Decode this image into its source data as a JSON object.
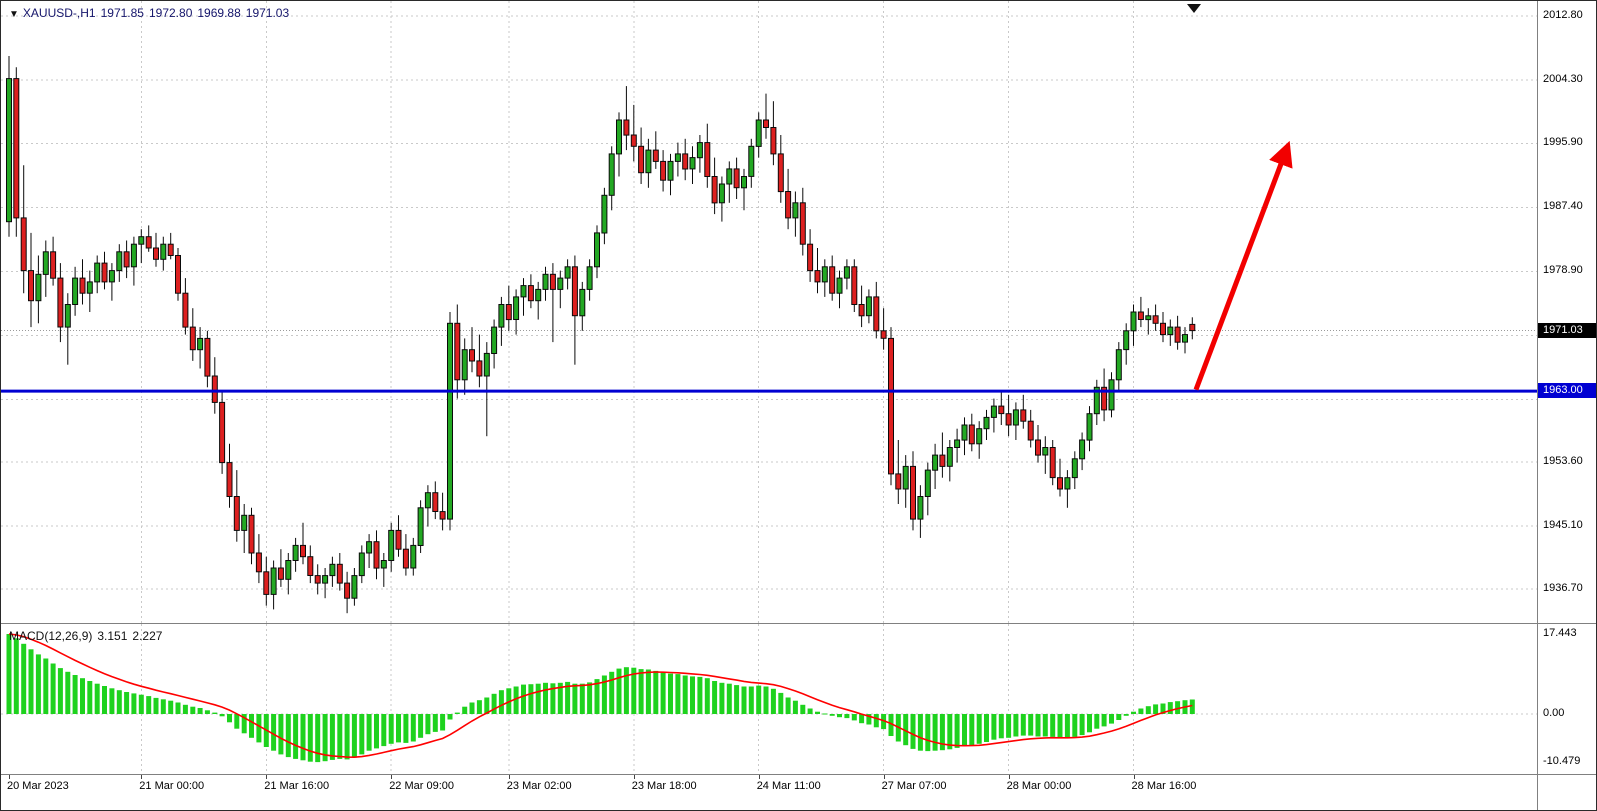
{
  "colors": {
    "bull": "#23a823",
    "bear": "#dd2020",
    "wick": "#0a0a0a",
    "histogram": "#1ed21e",
    "signal": "#ff0000",
    "hline": "#0000d2",
    "arrow": "#f20000",
    "badge_current_bg": "#000000",
    "badge_hline_bg": "#0000d2",
    "grid": "#c9c9c9",
    "header_text": "#15156b"
  },
  "header": {
    "marker": "▼",
    "symbol_timeframe": "XAUUSD-,H1",
    "open": "1971.85",
    "high": "1972.80",
    "low": "1969.88",
    "close": "1971.03"
  },
  "price_axis": {
    "labels": [
      {
        "text": "2012.80",
        "price": 2012.8
      },
      {
        "text": "2004.30",
        "price": 2004.3
      },
      {
        "text": "1995.90",
        "price": 1995.9
      },
      {
        "text": "1987.40",
        "price": 1987.4
      },
      {
        "text": "1978.90",
        "price": 1978.9
      },
      {
        "text": "1953.60",
        "price": 1953.6
      },
      {
        "text": "1945.10",
        "price": 1945.1
      },
      {
        "text": "1936.70",
        "price": 1936.7
      }
    ],
    "current_badge": {
      "text": "1971.03",
      "price": 1971.03
    },
    "hline_badge": {
      "text": "1963.00",
      "price": 1963.0
    }
  },
  "macd_axis_labels": [
    {
      "text": "17.443",
      "value": 17.443
    },
    {
      "text": "0.00",
      "value": 0
    },
    {
      "text": "-10.479",
      "value": -10.479
    }
  ],
  "time_axis": {
    "labels": [
      {
        "text": "20 Mar 2023",
        "index": 0
      },
      {
        "text": "21 Mar 00:00",
        "index": 18
      },
      {
        "text": "21 Mar 16:00",
        "index": 35
      },
      {
        "text": "22 Mar 09:00",
        "index": 52
      },
      {
        "text": "23 Mar 02:00",
        "index": 68
      },
      {
        "text": "23 Mar 18:00",
        "index": 85
      },
      {
        "text": "24 Mar 11:00",
        "index": 102
      },
      {
        "text": "27 Mar 07:00",
        "index": 119
      },
      {
        "text": "28 Mar 00:00",
        "index": 136
      },
      {
        "text": "28 Mar 16:00",
        "index": 153
      }
    ]
  },
  "indicator_header": {
    "name": "MACD(12,26,9)",
    "main_value": "3.151",
    "signal_value": "2.227"
  },
  "chart_data": {
    "type": "candlestick",
    "symbol": "XAUUSD-",
    "timeframe": "H1",
    "title": "XAUUSD-,H1 1971.85 1972.80 1969.88 1971.03",
    "current_ohlc": {
      "open": 1971.85,
      "high": 1972.8,
      "low": 1969.88,
      "close": 1971.03
    },
    "ylim": [
      1932.2,
      2014.8
    ],
    "price_gridlines": [
      2012.8,
      2004.3,
      1995.9,
      1987.4,
      1978.9,
      1970.4,
      1961.9,
      1953.6,
      1945.1,
      1936.7
    ],
    "hline_price": 1963.0,
    "bid_price": 1971.03,
    "arrow_annotation": {
      "from": {
        "index": 161.5,
        "price": 1963.2
      },
      "to": {
        "index": 174,
        "price": 1995.6
      },
      "color": "#f20000"
    },
    "candles": [
      [
        1985.5,
        2007.5,
        1983.5,
        2004.5
      ],
      [
        2004.5,
        2006,
        1983.5,
        1986
      ],
      [
        1986,
        1993,
        1976,
        1979
      ],
      [
        1979,
        1984,
        1971.5,
        1975
      ],
      [
        1975,
        1981,
        1972,
        1978.5
      ],
      [
        1978.5,
        1983,
        1975.5,
        1981.5
      ],
      [
        1981.5,
        1983.5,
        1977,
        1978
      ],
      [
        1978,
        1980,
        1969.5,
        1971.5
      ],
      [
        1971.5,
        1976,
        1966.5,
        1974.5
      ],
      [
        1974.5,
        1979.5,
        1973,
        1978
      ],
      [
        1978,
        1980.5,
        1974.5,
        1976
      ],
      [
        1976,
        1979,
        1973.5,
        1977.5
      ],
      [
        1977.5,
        1981,
        1976,
        1980
      ],
      [
        1980,
        1981.5,
        1976.5,
        1977.5
      ],
      [
        1977.5,
        1980,
        1975,
        1979
      ],
      [
        1979,
        1982.5,
        1977.5,
        1981.5
      ],
      [
        1981.5,
        1983,
        1978,
        1979.5
      ],
      [
        1979.5,
        1983.5,
        1977,
        1982.5
      ],
      [
        1982.5,
        1984.5,
        1980,
        1983.5
      ],
      [
        1983.5,
        1985,
        1981.5,
        1982
      ],
      [
        1982,
        1984,
        1979.5,
        1980.5
      ],
      [
        1980.5,
        1983.5,
        1979,
        1982.5
      ],
      [
        1982.5,
        1984,
        1980.5,
        1981
      ],
      [
        1981,
        1982,
        1975,
        1976
      ],
      [
        1976,
        1978,
        1970.5,
        1971.5
      ],
      [
        1971.5,
        1974,
        1967,
        1968.5
      ],
      [
        1968.5,
        1971.5,
        1966,
        1970
      ],
      [
        1970,
        1971,
        1963.5,
        1965
      ],
      [
        1965,
        1967.5,
        1960,
        1961.5
      ],
      [
        1961.5,
        1963,
        1952,
        1953.5
      ],
      [
        1953.5,
        1956,
        1947.5,
        1949
      ],
      [
        1949,
        1952.5,
        1943,
        1944.5
      ],
      [
        1944.5,
        1948,
        1941.5,
        1946.5
      ],
      [
        1946.5,
        1947.5,
        1940,
        1941.5
      ],
      [
        1941.5,
        1944,
        1937.5,
        1939
      ],
      [
        1939,
        1941,
        1934.5,
        1936
      ],
      [
        1936,
        1940.5,
        1934,
        1939.5
      ],
      [
        1939.5,
        1942,
        1937,
        1938
      ],
      [
        1938,
        1941.5,
        1936,
        1940.5
      ],
      [
        1940.5,
        1943.5,
        1939,
        1942.5
      ],
      [
        1942.5,
        1945.5,
        1940,
        1941
      ],
      [
        1941,
        1942.5,
        1937.5,
        1938.5
      ],
      [
        1938.5,
        1940,
        1936,
        1937.5
      ],
      [
        1937.5,
        1939.5,
        1935.5,
        1938.5
      ],
      [
        1938.5,
        1941,
        1937,
        1940
      ],
      [
        1940,
        1941.5,
        1936.5,
        1937.5
      ],
      [
        1937.5,
        1939,
        1933.5,
        1935.5
      ],
      [
        1935.5,
        1939.5,
        1934.5,
        1938.5
      ],
      [
        1938.5,
        1942.5,
        1937.5,
        1941.5
      ],
      [
        1941.5,
        1944,
        1939.5,
        1943
      ],
      [
        1943,
        1944.5,
        1938,
        1939.5
      ],
      [
        1939.5,
        1941.5,
        1937,
        1940.5
      ],
      [
        1940.5,
        1945.5,
        1939,
        1944.5
      ],
      [
        1944.5,
        1946.5,
        1941,
        1942
      ],
      [
        1942,
        1944,
        1938.5,
        1939.5
      ],
      [
        1939.5,
        1943.5,
        1938.5,
        1942.5
      ],
      [
        1942.5,
        1948.5,
        1941.5,
        1947.5
      ],
      [
        1947.5,
        1950.5,
        1945,
        1949.5
      ],
      [
        1949.5,
        1951,
        1946,
        1947
      ],
      [
        1947,
        1949.5,
        1944.5,
        1946
      ],
      [
        1946,
        1973.5,
        1944.5,
        1972
      ],
      [
        1972,
        1974.5,
        1962,
        1964.5
      ],
      [
        1964.5,
        1970,
        1962.5,
        1968.5
      ],
      [
        1968.5,
        1971.5,
        1965.5,
        1967
      ],
      [
        1967,
        1970.5,
        1963.5,
        1965
      ],
      [
        1965,
        1969.5,
        1957,
        1968
      ],
      [
        1968,
        1972.5,
        1966,
        1971.5
      ],
      [
        1971.5,
        1975.5,
        1969,
        1974.5
      ],
      [
        1974.5,
        1977,
        1971,
        1972.5
      ],
      [
        1972.5,
        1976.5,
        1970.5,
        1975.5
      ],
      [
        1975.5,
        1978,
        1973,
        1977
      ],
      [
        1977,
        1978.5,
        1974,
        1975
      ],
      [
        1975,
        1977.5,
        1972.5,
        1976.5
      ],
      [
        1976.5,
        1979.5,
        1975,
        1978.5
      ],
      [
        1978.5,
        1980,
        1969.5,
        1976.5
      ],
      [
        1976.5,
        1979,
        1974,
        1978
      ],
      [
        1978,
        1980.5,
        1976.5,
        1979.5
      ],
      [
        1979.5,
        1981,
        1966.5,
        1973
      ],
      [
        1973,
        1977.5,
        1971,
        1976.5
      ],
      [
        1976.5,
        1980.5,
        1975,
        1979.5
      ],
      [
        1979.5,
        1985,
        1978,
        1984
      ],
      [
        1984,
        1990,
        1982.5,
        1989
      ],
      [
        1989,
        1995.5,
        1987,
        1994.5
      ],
      [
        1994.5,
        2000,
        1991.5,
        1999
      ],
      [
        1999,
        2003.5,
        1995,
        1997
      ],
      [
        1997,
        2001,
        1993.5,
        1995.5
      ],
      [
        1995.5,
        1998,
        1990.5,
        1992
      ],
      [
        1992,
        1996.5,
        1990,
        1995
      ],
      [
        1995,
        1997.5,
        1992.5,
        1993.5
      ],
      [
        1993.5,
        1995,
        1989.5,
        1991
      ],
      [
        1991,
        1994.5,
        1989,
        1993.5
      ],
      [
        1993.5,
        1996,
        1991.5,
        1994.5
      ],
      [
        1994.5,
        1996.5,
        1991,
        1992.5
      ],
      [
        1992.5,
        1995.5,
        1990.5,
        1994
      ],
      [
        1994,
        1997,
        1992,
        1996
      ],
      [
        1996,
        1998.5,
        1990,
        1991.5
      ],
      [
        1991.5,
        1994,
        1986.5,
        1988
      ],
      [
        1988,
        1991.5,
        1985.5,
        1990.5
      ],
      [
        1990.5,
        1993.5,
        1988,
        1992.5
      ],
      [
        1992.5,
        1994,
        1988.5,
        1990
      ],
      [
        1990,
        1992.5,
        1987,
        1991.5
      ],
      [
        1991.5,
        1996.5,
        1990,
        1995.5
      ],
      [
        1995.5,
        2000,
        1994,
        1999
      ],
      [
        1999,
        2002.5,
        1996.5,
        1998
      ],
      [
        1998,
        2001.5,
        1993,
        1994.5
      ],
      [
        1994.5,
        1997,
        1988,
        1989.5
      ],
      [
        1989.5,
        1992.5,
        1984.5,
        1986
      ],
      [
        1986,
        1989.5,
        1983.5,
        1988
      ],
      [
        1988,
        1990,
        1981,
        1982.5
      ],
      [
        1982.5,
        1984.5,
        1977.5,
        1979
      ],
      [
        1979,
        1982,
        1976,
        1977.5
      ],
      [
        1977.5,
        1980.5,
        1975.5,
        1979.5
      ],
      [
        1979.5,
        1981,
        1975,
        1976
      ],
      [
        1976,
        1979,
        1974,
        1978
      ],
      [
        1978,
        1980.5,
        1976.5,
        1979.5
      ],
      [
        1979.5,
        1980.5,
        1973.5,
        1974.5
      ],
      [
        1974.5,
        1977,
        1971.5,
        1973
      ],
      [
        1973,
        1976.5,
        1972,
        1975.5
      ],
      [
        1975.5,
        1977.5,
        1970,
        1971
      ],
      [
        1971,
        1974,
        1968.5,
        1970
      ],
      [
        1970,
        1971.5,
        1950.5,
        1952
      ],
      [
        1952,
        1956.5,
        1948,
        1950
      ],
      [
        1950,
        1954.5,
        1947.5,
        1953
      ],
      [
        1953,
        1955,
        1944.5,
        1946
      ],
      [
        1946,
        1950.5,
        1943.5,
        1949
      ],
      [
        1949,
        1953.5,
        1946.5,
        1952.5
      ],
      [
        1952.5,
        1956,
        1950,
        1954.5
      ],
      [
        1954.5,
        1957.5,
        1951.5,
        1953
      ],
      [
        1953,
        1956.5,
        1951,
        1955.5
      ],
      [
        1955.5,
        1958,
        1953.5,
        1956.5
      ],
      [
        1956.5,
        1959.5,
        1954.5,
        1958.5
      ],
      [
        1958.5,
        1960,
        1955,
        1956
      ],
      [
        1956,
        1959,
        1954,
        1958
      ],
      [
        1958,
        1960.5,
        1956.5,
        1959.5
      ],
      [
        1959.5,
        1962,
        1957.5,
        1961
      ],
      [
        1961,
        1963,
        1958.5,
        1960
      ],
      [
        1960,
        1962.5,
        1957,
        1958.5
      ],
      [
        1958.5,
        1961.5,
        1956.5,
        1960.5
      ],
      [
        1960.5,
        1962.5,
        1958,
        1959
      ],
      [
        1959,
        1960.5,
        1955.5,
        1956.5
      ],
      [
        1956.5,
        1958.5,
        1953.5,
        1954.5
      ],
      [
        1954.5,
        1957,
        1952,
        1955.5
      ],
      [
        1955.5,
        1956.5,
        1950.5,
        1951.5
      ],
      [
        1951.5,
        1954,
        1949,
        1950
      ],
      [
        1950,
        1952.5,
        1947.5,
        1951.5
      ],
      [
        1951.5,
        1955,
        1950,
        1954
      ],
      [
        1954,
        1957.5,
        1952.5,
        1956.5
      ],
      [
        1956.5,
        1961,
        1955,
        1960
      ],
      [
        1960,
        1964.5,
        1958.5,
        1963.5
      ],
      [
        1963.5,
        1966,
        1959,
        1960.5
      ],
      [
        1960.5,
        1965.5,
        1959.5,
        1964.5
      ],
      [
        1964.5,
        1969.5,
        1963,
        1968.5
      ],
      [
        1968.5,
        1972,
        1966.5,
        1971
      ],
      [
        1971,
        1974.5,
        1969,
        1973.5
      ],
      [
        1973.5,
        1975.5,
        1971.5,
        1972.5
      ],
      [
        1972.5,
        1974,
        1970.5,
        1973
      ],
      [
        1973,
        1974.5,
        1971,
        1972
      ],
      [
        1972,
        1973.5,
        1969.5,
        1970.5
      ],
      [
        1970.5,
        1972.5,
        1969,
        1971.5
      ],
      [
        1971.5,
        1973,
        1968.5,
        1969.5
      ],
      [
        1969.5,
        1971.5,
        1968,
        1970.5
      ],
      [
        1971.85,
        1972.8,
        1969.88,
        1971.03
      ]
    ],
    "indicator": {
      "name": "MACD",
      "params": [
        12,
        26,
        9
      ],
      "last_main": 3.151,
      "last_signal": 2.227,
      "axis_ticks": [
        17.443,
        0,
        -10.479
      ],
      "signal_period": 9,
      "main": [
        17.443,
        16.5,
        15.3,
        14.1,
        13.0,
        12.1,
        11.0,
        10.0,
        9.2,
        8.5,
        7.8,
        7.2,
        6.6,
        6.1,
        5.6,
        5.2,
        4.8,
        4.5,
        4.2,
        3.9,
        3.5,
        3.2,
        2.9,
        2.5,
        2.0,
        1.6,
        1.3,
        0.8,
        0.3,
        -0.5,
        -1.8,
        -3.2,
        -4.2,
        -5.2,
        -6.2,
        -7.2,
        -8.0,
        -8.8,
        -9.4,
        -9.8,
        -10.1,
        -10.4,
        -10.479,
        -10.3,
        -10.0,
        -9.8,
        -9.9,
        -9.5,
        -8.8,
        -8.0,
        -7.5,
        -7.0,
        -6.5,
        -6.2,
        -6.3,
        -6.0,
        -5.2,
        -4.4,
        -3.9,
        -3.6,
        -1.2,
        0.3,
        1.6,
        2.5,
        3.0,
        3.6,
        4.4,
        5.2,
        5.6,
        6.0,
        6.4,
        6.5,
        6.6,
        6.8,
        6.7,
        6.8,
        7.0,
        6.6,
        6.6,
        6.9,
        7.6,
        8.4,
        9.2,
        9.9,
        10.2,
        10.1,
        9.8,
        9.7,
        9.4,
        9.0,
        8.8,
        8.7,
        8.4,
        8.2,
        8.1,
        7.8,
        7.2,
        6.8,
        6.6,
        6.3,
        6.0,
        6.0,
        6.2,
        6.0,
        5.5,
        4.6,
        3.6,
        2.9,
        2.0,
        1.2,
        0.5,
        0.1,
        -0.4,
        -0.7,
        -0.9,
        -1.4,
        -2.0,
        -2.3,
        -2.9,
        -3.3,
        -4.8,
        -6.0,
        -6.8,
        -7.6,
        -8.0,
        -8.1,
        -8.0,
        -7.9,
        -7.7,
        -7.4,
        -7.0,
        -6.8,
        -6.5,
        -6.1,
        -5.6,
        -5.3,
        -5.2,
        -4.9,
        -4.7,
        -4.7,
        -4.9,
        -4.9,
        -5.0,
        -5.2,
        -5.2,
        -5.0,
        -4.6,
        -4.0,
        -3.2,
        -2.7,
        -2.1,
        -1.3,
        -0.4,
        0.5,
        1.2,
        1.7,
        2.1,
        2.3,
        2.6,
        2.8,
        3.0,
        3.151
      ]
    }
  }
}
